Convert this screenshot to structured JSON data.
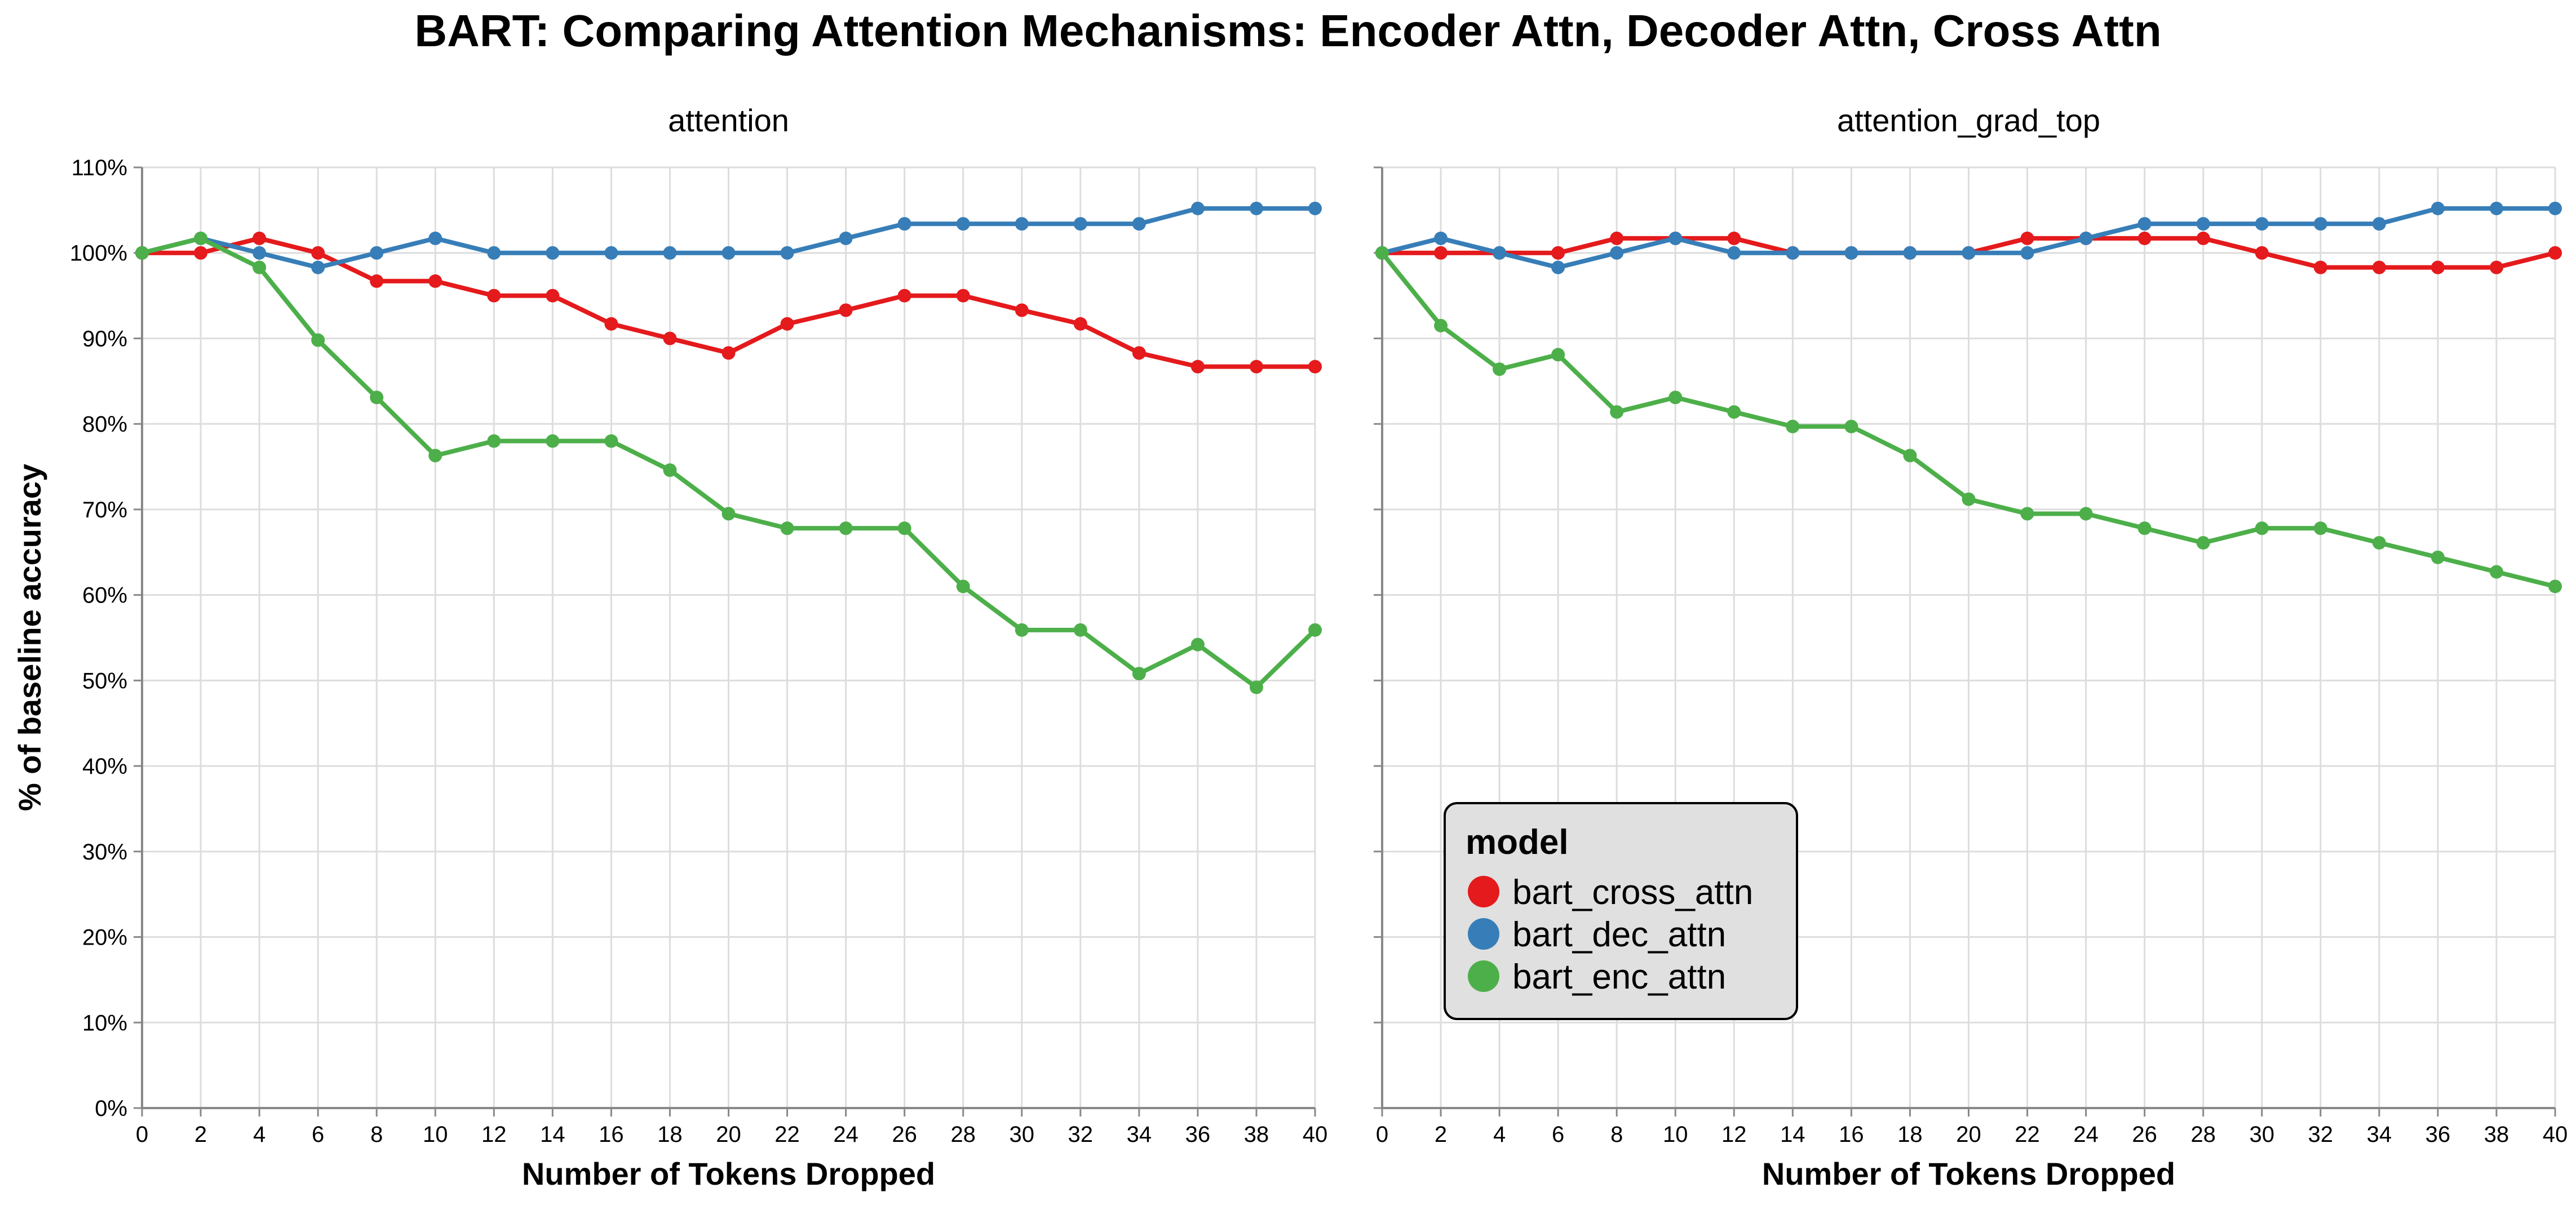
{
  "title": "BART: Comparing Attention Mechanisms: Encoder Attn, Decoder Attn, Cross Attn",
  "chart_data": {
    "type": "line",
    "title": "BART: Comparing Attention Mechanisms: Encoder Attn, Decoder Attn, Cross Attn",
    "xlabel": "Number of Tokens Dropped",
    "ylabel": "% of baseline accuracy",
    "x": [
      0,
      2,
      4,
      6,
      8,
      10,
      12,
      14,
      16,
      18,
      20,
      22,
      24,
      26,
      28,
      30,
      32,
      34,
      36,
      38,
      40
    ],
    "xlim": [
      0,
      40
    ],
    "ylim": [
      0,
      110
    ],
    "x_ticks": [
      "0",
      "2",
      "4",
      "6",
      "8",
      "10",
      "12",
      "14",
      "16",
      "18",
      "20",
      "22",
      "24",
      "26",
      "28",
      "30",
      "32",
      "34",
      "36",
      "38",
      "40"
    ],
    "y_ticks": [
      "0%",
      "10%",
      "20%",
      "30%",
      "40%",
      "50%",
      "60%",
      "70%",
      "80%",
      "90%",
      "100%",
      "110%"
    ],
    "y_tick_values": [
      0,
      10,
      20,
      30,
      40,
      50,
      60,
      70,
      80,
      90,
      100,
      110
    ],
    "grid": true,
    "legend": {
      "title": "model",
      "placement": "bottom-left of right panel",
      "entries": [
        {
          "label": "bart_cross_attn",
          "color": "#e41a1c"
        },
        {
          "label": "bart_dec_attn",
          "color": "#377eb8"
        },
        {
          "label": "bart_enc_attn",
          "color": "#4daf4a"
        }
      ]
    },
    "panels": [
      {
        "title": "attention",
        "series": [
          {
            "name": "bart_cross_attn",
            "color": "#e41a1c",
            "values": [
              100,
              100,
              101.7,
              100,
              96.7,
              96.7,
              95,
              95,
              91.7,
              90,
              88.3,
              91.7,
              93.3,
              95,
              95,
              93.3,
              91.7,
              88.3,
              86.7,
              86.7,
              86.7
            ]
          },
          {
            "name": "bart_dec_attn",
            "color": "#377eb8",
            "values": [
              100,
              101.7,
              100,
              98.3,
              100,
              101.7,
              100,
              100,
              100,
              100,
              100,
              100,
              101.7,
              103.4,
              103.4,
              103.4,
              103.4,
              103.4,
              105.2,
              105.2,
              105.2
            ]
          },
          {
            "name": "bart_enc_attn",
            "color": "#4daf4a",
            "values": [
              100,
              101.7,
              98.3,
              89.8,
              83.1,
              76.3,
              78,
              78,
              78,
              74.6,
              69.5,
              67.8,
              67.8,
              67.8,
              61,
              55.9,
              55.9,
              50.8,
              54.2,
              49.2,
              55.9
            ]
          }
        ]
      },
      {
        "title": "attention_grad_top",
        "series": [
          {
            "name": "bart_cross_attn",
            "color": "#e41a1c",
            "values": [
              100,
              100,
              100,
              100,
              101.7,
              101.7,
              101.7,
              100,
              100,
              100,
              100,
              101.7,
              101.7,
              101.7,
              101.7,
              100,
              98.3,
              98.3,
              98.3,
              98.3,
              100
            ]
          },
          {
            "name": "bart_dec_attn",
            "color": "#377eb8",
            "values": [
              100,
              101.7,
              100,
              98.3,
              100,
              101.7,
              100,
              100,
              100,
              100,
              100,
              100,
              101.7,
              103.4,
              103.4,
              103.4,
              103.4,
              103.4,
              105.2,
              105.2,
              105.2
            ]
          },
          {
            "name": "bart_enc_attn",
            "color": "#4daf4a",
            "values": [
              100,
              91.5,
              86.4,
              88.1,
              81.4,
              83.1,
              81.4,
              79.7,
              79.7,
              76.3,
              71.2,
              69.5,
              69.5,
              67.8,
              66.1,
              67.8,
              67.8,
              66.1,
              64.4,
              62.7,
              61
            ]
          }
        ]
      }
    ]
  }
}
